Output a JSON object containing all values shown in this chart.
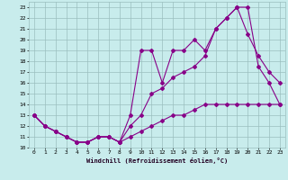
{
  "xlabel": "Windchill (Refroidissement éolien,°C)",
  "bg_color": "#c8ecec",
  "grid_color": "#9bbfbf",
  "line_color": "#880088",
  "xlim": [
    -0.5,
    23.5
  ],
  "ylim": [
    10,
    23.5
  ],
  "xticks": [
    0,
    1,
    2,
    3,
    4,
    5,
    6,
    7,
    8,
    9,
    10,
    11,
    12,
    13,
    14,
    15,
    16,
    17,
    18,
    19,
    20,
    21,
    22,
    23
  ],
  "yticks": [
    10,
    11,
    12,
    13,
    14,
    15,
    16,
    17,
    18,
    19,
    20,
    21,
    22,
    23
  ],
  "line1_x": [
    0,
    1,
    2,
    3,
    4,
    5,
    6,
    7,
    8,
    9,
    10,
    11,
    12,
    13,
    14,
    15,
    16,
    17,
    18,
    19,
    20,
    21,
    22,
    23
  ],
  "line1_y": [
    13,
    12,
    11.5,
    11,
    10.5,
    10.5,
    11,
    11,
    10.5,
    13,
    19,
    19,
    16,
    19,
    19,
    20,
    19,
    21,
    22,
    23,
    23,
    17.5,
    16,
    14
  ],
  "line2_x": [
    0,
    1,
    2,
    3,
    4,
    5,
    6,
    7,
    8,
    9,
    10,
    11,
    12,
    13,
    14,
    15,
    16,
    17,
    18,
    19,
    20,
    21,
    22,
    23
  ],
  "line2_y": [
    13,
    12,
    11.5,
    11,
    10.5,
    10.5,
    11,
    11,
    10.5,
    12,
    13,
    15,
    15.5,
    16.5,
    17,
    17.5,
    18.5,
    21,
    22,
    23,
    20.5,
    18.5,
    17,
    16
  ],
  "line3_x": [
    0,
    1,
    2,
    3,
    4,
    5,
    6,
    7,
    8,
    9,
    10,
    11,
    12,
    13,
    14,
    15,
    16,
    17,
    18,
    19,
    20,
    21,
    22,
    23
  ],
  "line3_y": [
    13,
    12,
    11.5,
    11,
    10.5,
    10.5,
    11,
    11,
    10.5,
    11,
    11.5,
    12,
    12.5,
    13,
    13,
    13.5,
    14,
    14,
    14,
    14,
    14,
    14,
    14,
    14
  ]
}
